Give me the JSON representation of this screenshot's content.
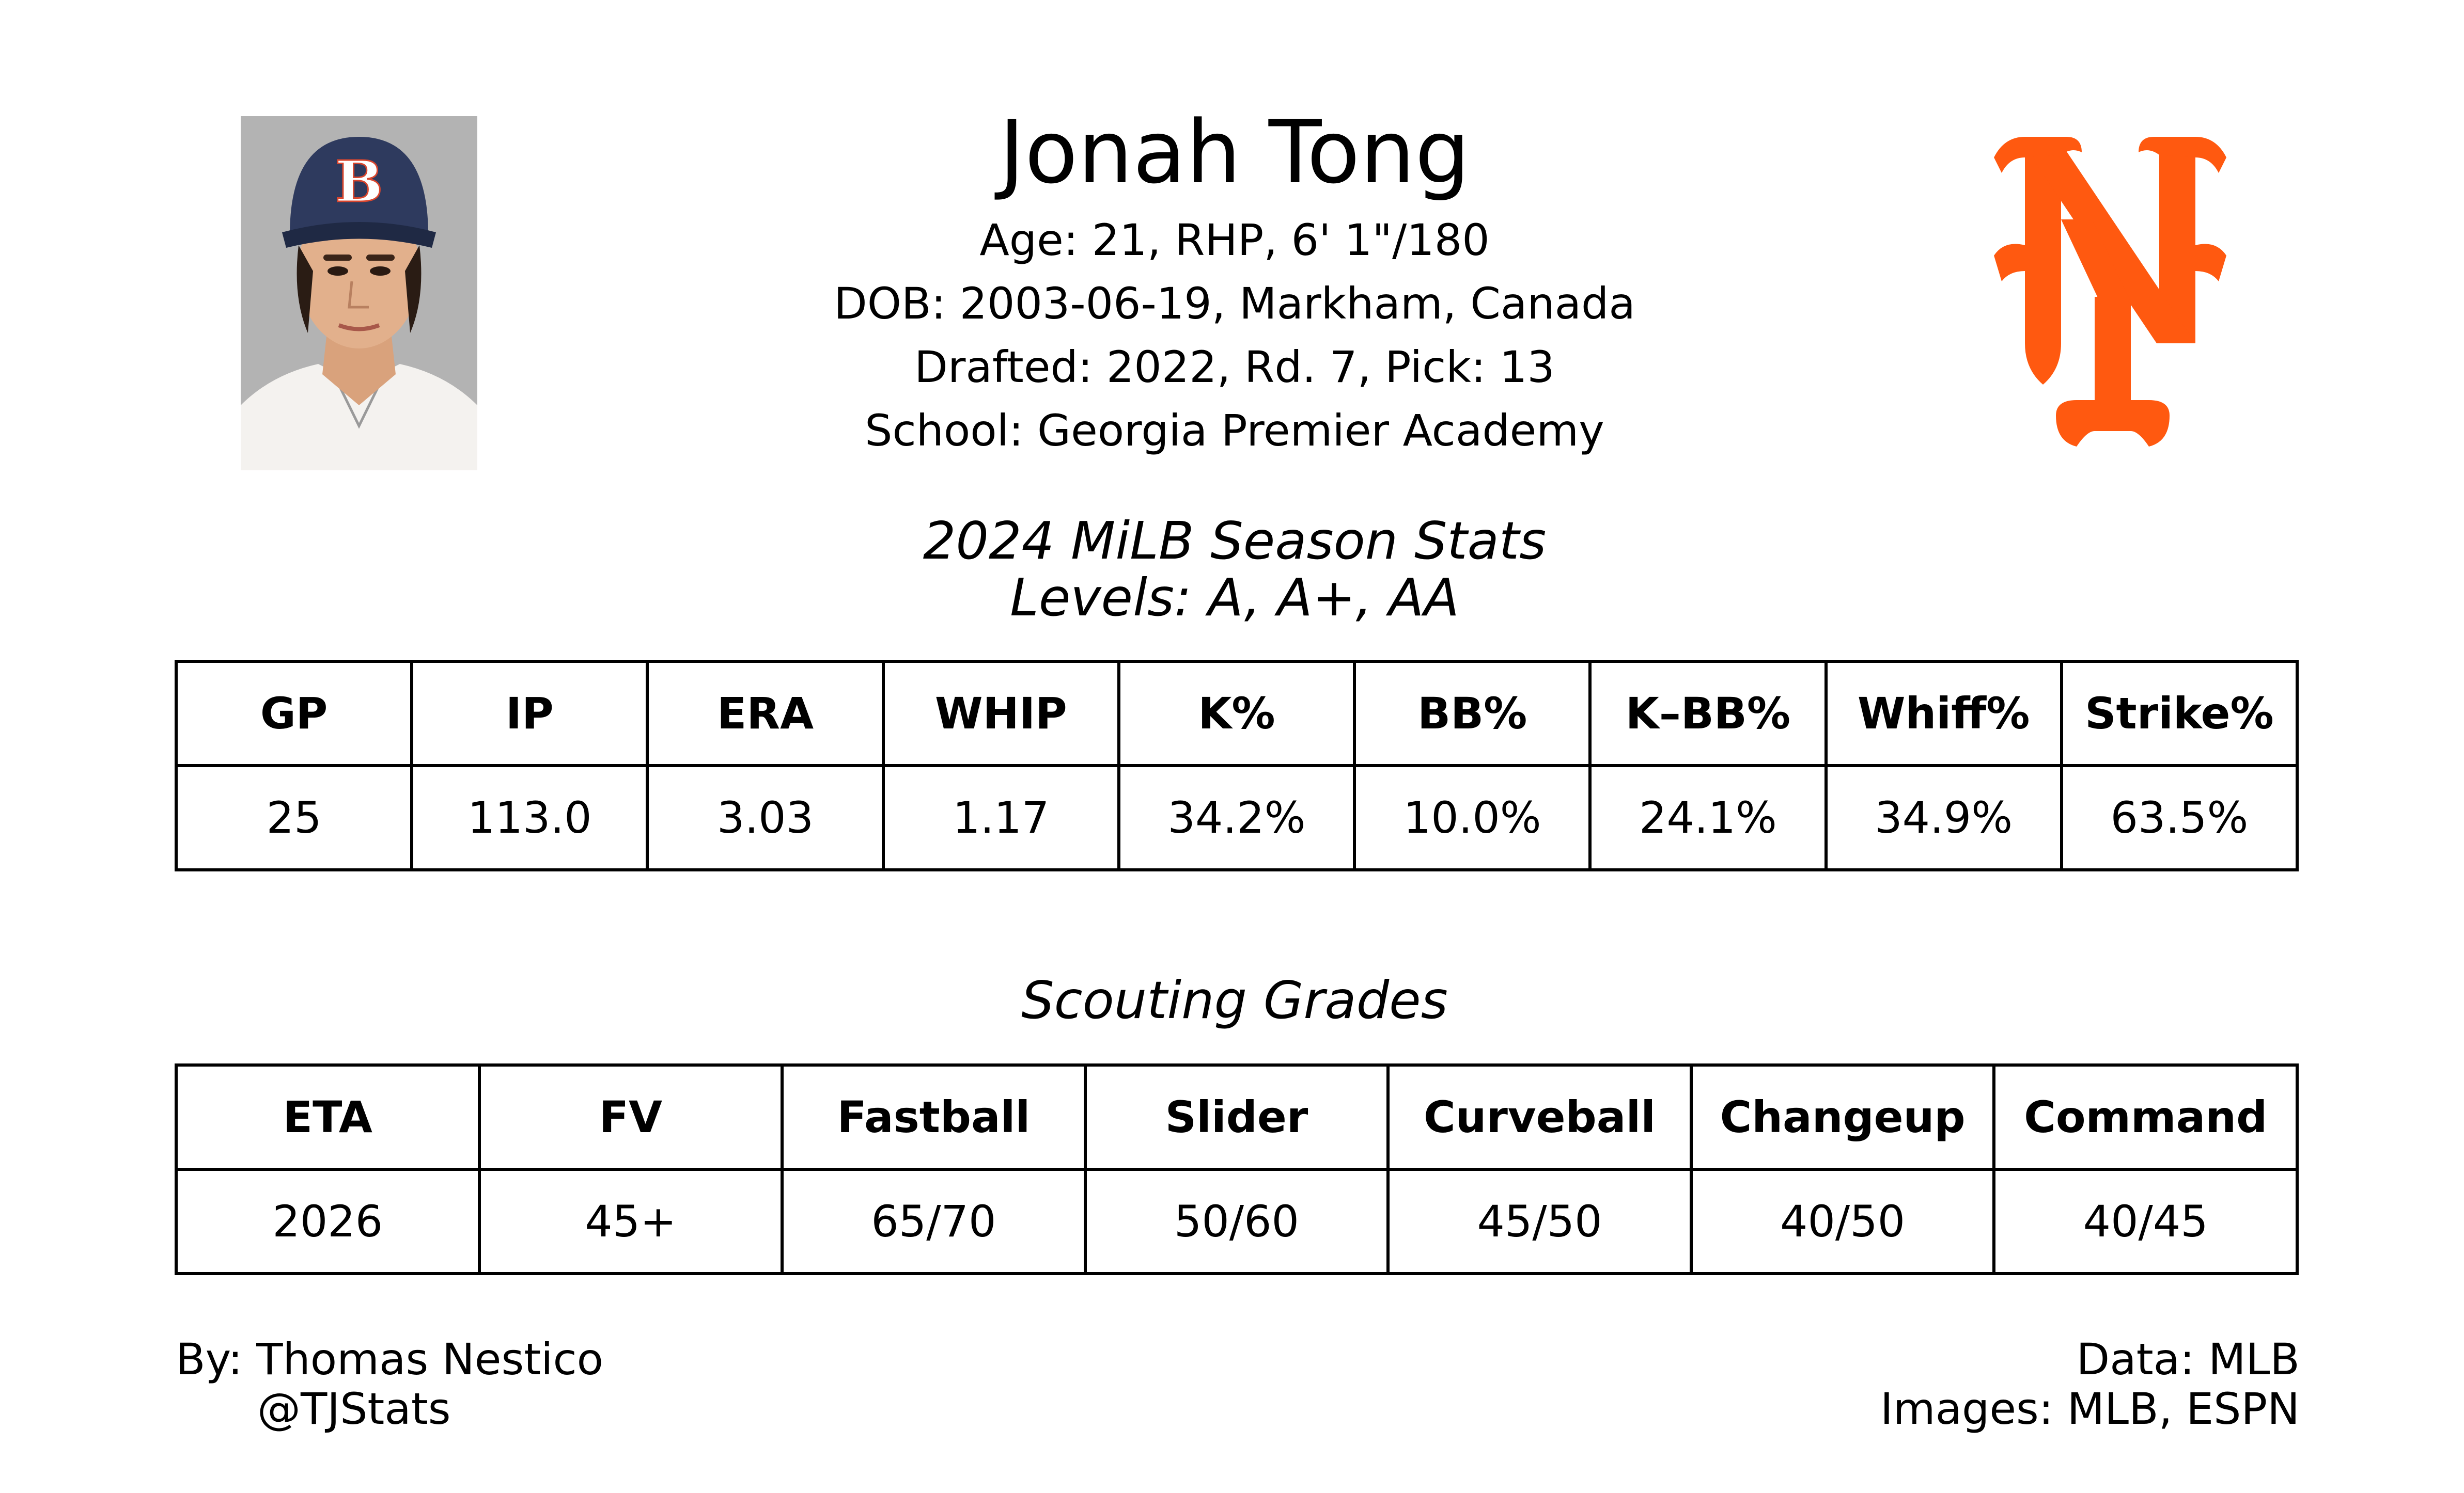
{
  "player": {
    "name": "Jonah Tong",
    "age_line": "Age: 21, RHP, 6' 1\"/180",
    "dob_line": "DOB: 2003-06-19, Markham, Canada",
    "drafted_line": "Drafted: 2022, Rd. 7, Pick: 13",
    "school_line": "School: Georgia Premier Academy"
  },
  "season": {
    "title": "2024 MiLB Season Stats",
    "levels": "Levels: A, A+, AA",
    "headers": [
      "GP",
      "IP",
      "ERA",
      "WHIP",
      "K%",
      "BB%",
      "K–BB%",
      "Whiff%",
      "Strike%"
    ],
    "values": [
      "25",
      "113.0",
      "3.03",
      "1.17",
      "34.2%",
      "10.0%",
      "24.1%",
      "34.9%",
      "63.5%"
    ]
  },
  "scouting": {
    "title": "Scouting Grades",
    "headers": [
      "ETA",
      "FV",
      "Fastball",
      "Slider",
      "Curveball",
      "Changeup",
      "Command"
    ],
    "values": [
      "2026",
      "45+",
      "65/70",
      "50/60",
      "45/50",
      "40/50",
      "40/45"
    ]
  },
  "footer": {
    "by": "By: Thomas Nestico",
    "handle": "@TJStats",
    "data": "Data: MLB",
    "images": "Images: MLB, ESPN"
  },
  "images": {
    "player_photo": "player-headshot",
    "team_logo": "ny-mets-logo"
  },
  "colors": {
    "logo_orange": "#FF5910",
    "photo_bg": "#B3B3B3",
    "cap_navy": "#2E3A5E"
  }
}
